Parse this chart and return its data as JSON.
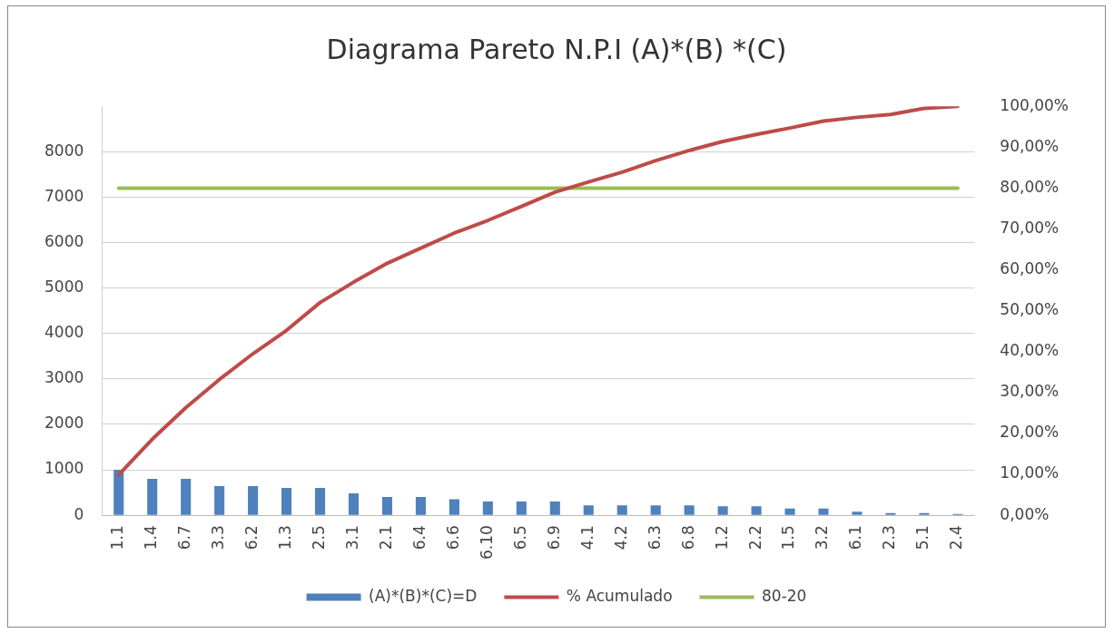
{
  "chart_data": {
    "type": "bar",
    "title": "Diagrama Pareto N.P.I (A)*(B) *(C)",
    "categories": [
      "1.1",
      "1.4",
      "6.7",
      "3.3",
      "6.2",
      "1.3",
      "2.5",
      "3.1",
      "2.1",
      "6.4",
      "6.6",
      "6.10",
      "6.5",
      "6.9",
      "4.1",
      "4.2",
      "6.3",
      "6.8",
      "1.2",
      "2.2",
      "1.5",
      "3.2",
      "6.1",
      "2.3",
      "5.1",
      "2.4"
    ],
    "series": [
      {
        "name": "(A)*(B)*(C)=D",
        "color": "#4f81bd",
        "values": [
          1000,
          800,
          800,
          640,
          640,
          600,
          600,
          480,
          400,
          400,
          350,
          300,
          300,
          300,
          220,
          220,
          220,
          220,
          200,
          200,
          150,
          150,
          80,
          50,
          50,
          30
        ]
      },
      {
        "name": "% Acumulado",
        "type": "line",
        "axis": "y2",
        "color": "#be4b48",
        "values": [
          9.9,
          18.6,
          26.3,
          33.2,
          39.5,
          45.2,
          52.0,
          57.0,
          61.6,
          65.3,
          69.0,
          72.1,
          75.5,
          79.0,
          81.5,
          83.9,
          86.7,
          89.2,
          91.4,
          93.1,
          94.7,
          96.4,
          97.3,
          98.0,
          99.5,
          100
        ]
      },
      {
        "name": "80-20",
        "type": "line",
        "axis": "y2",
        "color": "#9bbb59",
        "values": [
          80,
          80,
          80,
          80,
          80,
          80,
          80,
          80,
          80,
          80,
          80,
          80,
          80,
          80,
          80,
          80,
          80,
          80,
          80,
          80,
          80,
          80,
          80,
          80,
          80,
          80
        ]
      }
    ],
    "ylim": [
      0,
      9000
    ],
    "yticks": [
      0,
      1000,
      2000,
      3000,
      4000,
      5000,
      6000,
      7000,
      8000
    ],
    "y2lim": [
      0,
      100
    ],
    "y2ticks": [
      {
        "value": 0,
        "label": "0,00%"
      },
      {
        "value": 10,
        "label": "10,00%"
      },
      {
        "value": 20,
        "label": "20,00%"
      },
      {
        "value": 30,
        "label": "30,00%"
      },
      {
        "value": 40,
        "label": "40,00%"
      },
      {
        "value": 50,
        "label": "50,00%"
      },
      {
        "value": 60,
        "label": "60,00%"
      },
      {
        "value": 70,
        "label": "70,00%"
      },
      {
        "value": 80,
        "label": "80,00%"
      },
      {
        "value": 90,
        "label": "90,00%"
      },
      {
        "value": 100,
        "label": "100,00%"
      }
    ],
    "grid": "y",
    "legend": "bottom",
    "marker": "none",
    "line_style": "solid"
  }
}
